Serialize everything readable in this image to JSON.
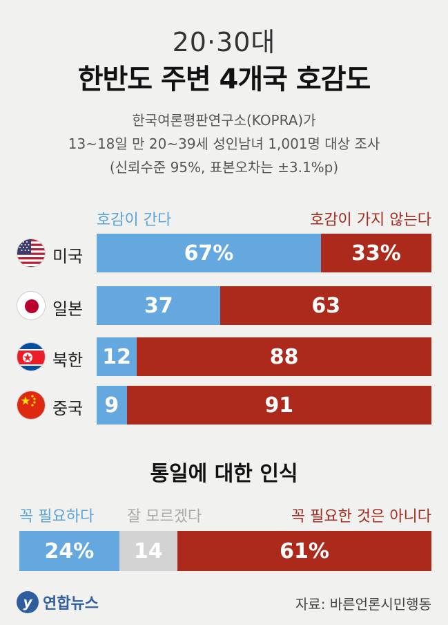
{
  "title_line1": "20·30대",
  "title_line2": "한반도 주변 4개국 호감도",
  "subtitle": [
    "한국여론평판연구소(KOPRA)가",
    "13~18일 만 20~39세 성인남녀 1,001명 대상 조사",
    "(신뢰수준 95%, 표본오차는 ±3.1%p)"
  ],
  "chart_data": [
    {
      "type": "bar",
      "orientation": "horizontal",
      "stacked": true,
      "categories": [
        "미국",
        "일본",
        "북한",
        "중국"
      ],
      "series": [
        {
          "name": "호감이 간다",
          "values": [
            67,
            37,
            12,
            9
          ],
          "labels": [
            "67%",
            "37",
            "12",
            "9"
          ],
          "color": "#64a8df"
        },
        {
          "name": "호감이 가지 않는다",
          "values": [
            33,
            63,
            88,
            91
          ],
          "labels": [
            "33%",
            "63",
            "88",
            "91"
          ],
          "color": "#ac2a1c"
        }
      ],
      "xlim": [
        0,
        100
      ],
      "legend": "top"
    },
    {
      "type": "bar",
      "orientation": "horizontal",
      "stacked": true,
      "title": "통일에 대한 인식",
      "categories": [
        ""
      ],
      "series": [
        {
          "name": "꼭 필요하다",
          "values": [
            24
          ],
          "labels": [
            "24%"
          ],
          "color": "#64a8df"
        },
        {
          "name": "잘 모르겠다",
          "values": [
            14
          ],
          "labels": [
            "14"
          ],
          "color": "#d3d3d3"
        },
        {
          "name": "꼭 필요한 것은 아니다",
          "values": [
            61
          ],
          "labels": [
            "61%"
          ],
          "color": "#ac2a1c"
        }
      ],
      "legend": "top"
    }
  ],
  "flags": [
    "usa-flag-icon",
    "japan-flag-icon",
    "north-korea-flag-icon",
    "china-flag-icon"
  ],
  "footer": {
    "logo_text": "연합뉴스",
    "source": "자료: 바른언론시민행동"
  }
}
